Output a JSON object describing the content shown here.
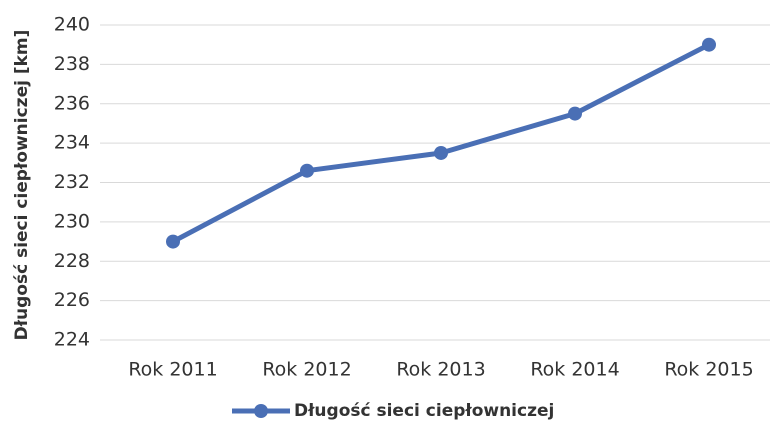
{
  "chart_data": {
    "type": "line",
    "y_axis_label": "Długość sieci ciepłowniczej [km]",
    "categories": [
      "Rok 2011",
      "Rok 2012",
      "Rok 2013",
      "Rok 2014",
      "Rok 2015"
    ],
    "series": [
      {
        "name": "Długość sieci ciepłowniczej",
        "color": "#4a6fb5",
        "values": [
          229,
          232.6,
          233.5,
          235.5,
          239
        ]
      }
    ],
    "ylim": [
      224,
      240
    ],
    "yticks": [
      224,
      226,
      228,
      230,
      232,
      234,
      236,
      238,
      240
    ],
    "grid": true,
    "legend": "bottom"
  }
}
